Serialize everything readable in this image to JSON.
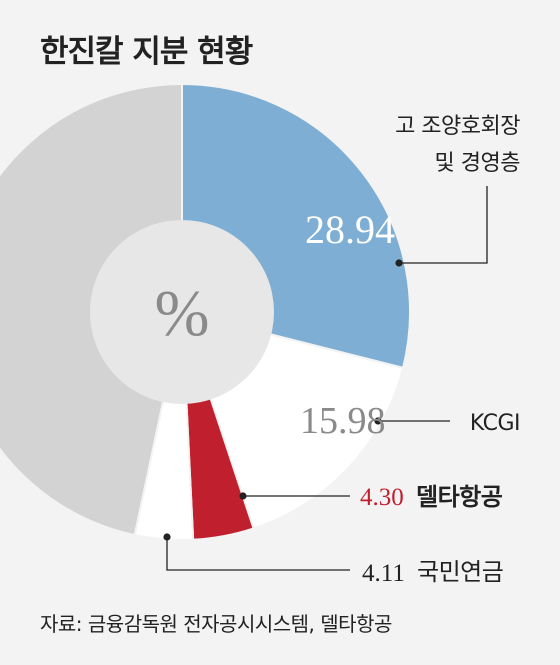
{
  "title": "한진칼 지분 현황",
  "center_unit": "%",
  "source": "자료: 금융감독원 전자공시시스템, 델타항공",
  "chart_data": {
    "type": "pie",
    "style": "donut",
    "title": "한진칼 지분 현황",
    "unit": "%",
    "start": "12 o'clock",
    "direction": "clockwise",
    "slices": [
      {
        "name_lines": [
          "고 조양호회장",
          "및 경영층"
        ],
        "value": 28.94,
        "value_label": "28.94",
        "color": "#7eaed3",
        "value_color": "#ffffff",
        "name_color": "#222222",
        "name_bold": false
      },
      {
        "name_lines": [
          "KCGI"
        ],
        "value": 15.98,
        "value_label": "15.98",
        "color": "#ffffff",
        "value_color": "#8a8a8a",
        "name_color": "#222222",
        "name_bold": false
      },
      {
        "name_lines": [
          "델타항공"
        ],
        "value": 4.3,
        "value_label": "4.30",
        "color": "#c0202e",
        "value_color": "#c0202e",
        "name_color": "#222222",
        "name_bold": true
      },
      {
        "name_lines": [
          "국민연금"
        ],
        "value": 4.11,
        "value_label": "4.11",
        "color": "#ffffff",
        "value_color": "#222222",
        "name_color": "#222222",
        "name_bold": false
      },
      {
        "name_lines": [],
        "value": 46.67,
        "value_label": "",
        "color": "#d3d3d3"
      }
    ]
  }
}
